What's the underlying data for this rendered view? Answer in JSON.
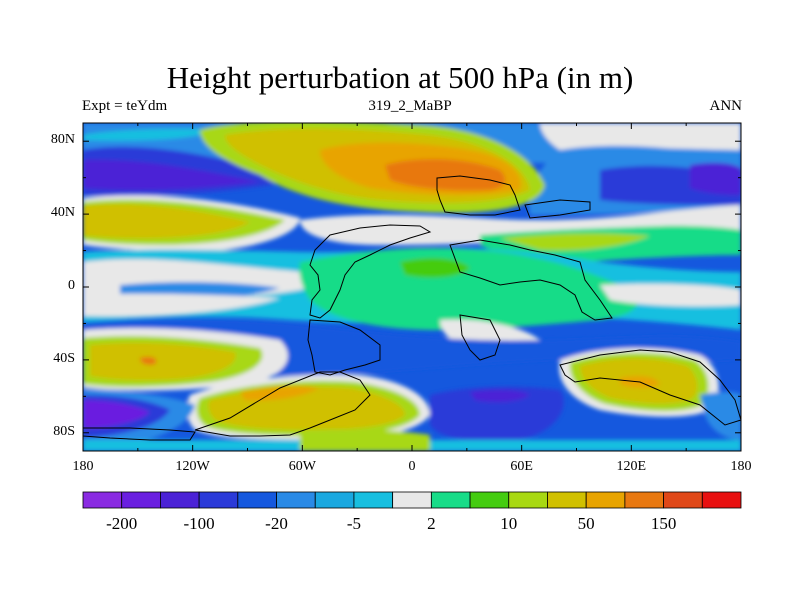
{
  "header": {
    "title": "Height perturbation at 500 hPa (in m)",
    "left": "Expt = teYdm",
    "center": "319_2_MaBP",
    "right": "ANN"
  },
  "map": {
    "projection": "cylindrical equidistant",
    "lon_range": [
      -180,
      180
    ],
    "lat_range": [
      -90,
      90
    ],
    "lon_ticks": [
      {
        "value": -180,
        "label": "180"
      },
      {
        "value": -120,
        "label": "120W"
      },
      {
        "value": -60,
        "label": "60W"
      },
      {
        "value": 0,
        "label": "0"
      },
      {
        "value": 60,
        "label": "60E"
      },
      {
        "value": 120,
        "label": "120E"
      },
      {
        "value": 180,
        "label": "180"
      }
    ],
    "lat_ticks": [
      {
        "value": 80,
        "label": "80N"
      },
      {
        "value": 40,
        "label": "40N"
      },
      {
        "value": 0,
        "label": "0"
      },
      {
        "value": -40,
        "label": "40S"
      },
      {
        "value": -80,
        "label": "80S"
      }
    ]
  },
  "colorbar": {
    "colors": [
      "#8a2be2",
      "#6a1fe0",
      "#4b22d6",
      "#2b3ad8",
      "#1558de",
      "#2a8ae6",
      "#1aa8e0",
      "#18bfe0",
      "#e8e8e8",
      "#18dc88",
      "#44cc10",
      "#a8d812",
      "#d0c000",
      "#e8a400",
      "#e87810",
      "#e04818",
      "#e81010"
    ],
    "tick_labels": [
      {
        "index": 1,
        "label": "-200"
      },
      {
        "index": 3,
        "label": "-100"
      },
      {
        "index": 5,
        "label": "-20"
      },
      {
        "index": 7,
        "label": "-5"
      },
      {
        "index": 9,
        "label": "2"
      },
      {
        "index": 11,
        "label": "10"
      },
      {
        "index": 13,
        "label": "50"
      },
      {
        "index": 15,
        "label": "150"
      }
    ]
  }
}
